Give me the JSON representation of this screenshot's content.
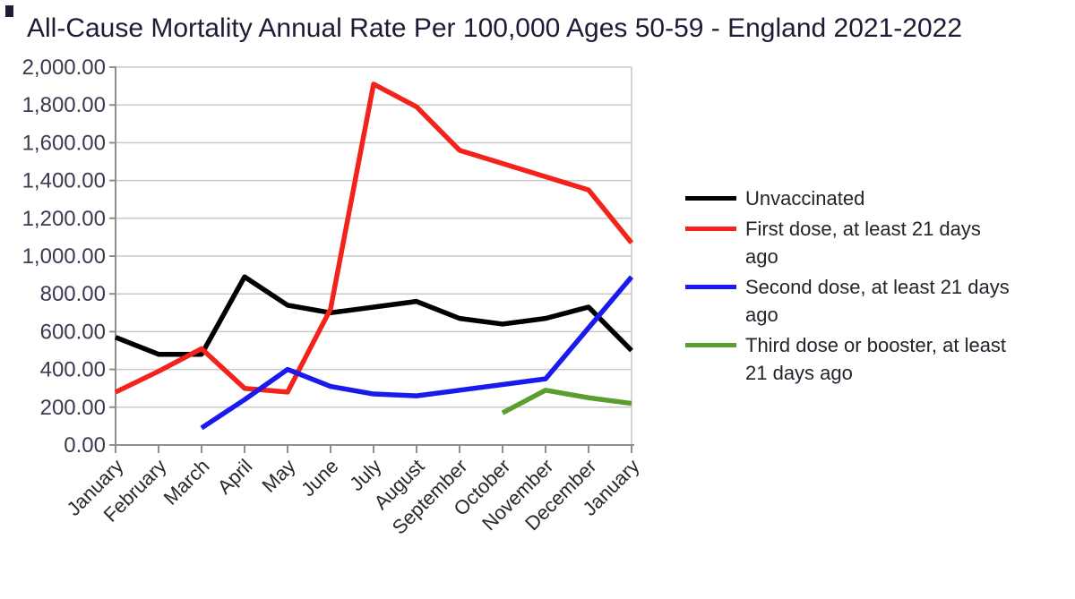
{
  "title": "All-Cause Mortality Annual Rate Per 100,000 Ages 50-59 - England 2021-2022",
  "chart_data": {
    "type": "line",
    "title": "All-Cause Mortality Annual Rate Per 100,000 Ages 50-59 - England 2021-2022",
    "categories": [
      "January",
      "February",
      "March",
      "April",
      "May",
      "June",
      "July",
      "August",
      "September",
      "October",
      "November",
      "December",
      "January"
    ],
    "ylim": [
      0,
      2000
    ],
    "yticks": [
      0,
      200,
      400,
      600,
      800,
      1000,
      1200,
      1400,
      1600,
      1800,
      2000
    ],
    "ytick_labels": [
      "0.00",
      "200.00",
      "400.00",
      "600.00",
      "800.00",
      "1,000.00",
      "1,200.00",
      "1,400.00",
      "1,600.00",
      "1,800.00",
      "2,000.00"
    ],
    "grid": true,
    "legend_position": "right",
    "series": [
      {
        "name": "Unvaccinated",
        "color": "#000000",
        "values": [
          570,
          480,
          480,
          890,
          740,
          700,
          730,
          760,
          670,
          640,
          670,
          730,
          500
        ]
      },
      {
        "name": "First dose, at least 21 days ago",
        "color": "#f3231c",
        "values": [
          280,
          390,
          510,
          300,
          280,
          720,
          1910,
          1790,
          1560,
          1490,
          1420,
          1350,
          1070
        ]
      },
      {
        "name": "Second dose, at least 21 days ago",
        "color": "#1a1aef",
        "values": [
          null,
          null,
          90,
          240,
          400,
          310,
          270,
          260,
          290,
          320,
          350,
          620,
          890
        ]
      },
      {
        "name": "Third dose or booster, at least 21 days ago",
        "color": "#5a9e2d",
        "values": [
          null,
          null,
          null,
          null,
          null,
          null,
          null,
          null,
          null,
          170,
          290,
          250,
          220
        ]
      }
    ]
  }
}
